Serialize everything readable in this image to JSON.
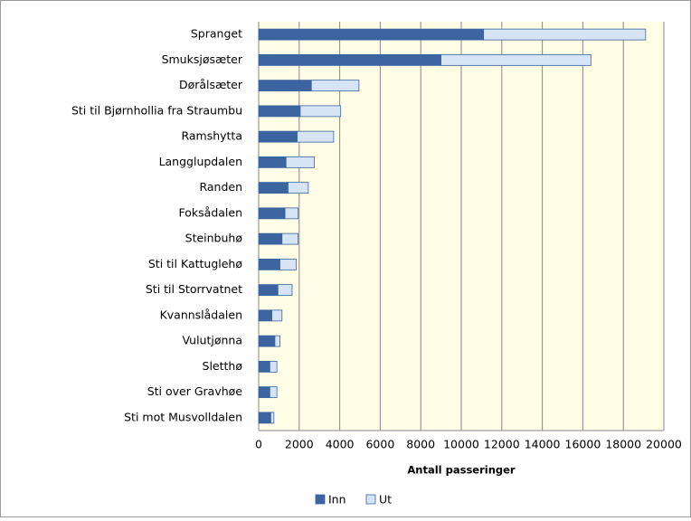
{
  "chart_data": {
    "type": "bar",
    "orientation": "horizontal",
    "stacked": true,
    "x_label": "Antall passeringer",
    "categories": [
      "Spranget",
      "Smuksjøsæter",
      "Dørålsæter",
      "Sti til Bjørnhollia fra Straumbu",
      "Ramshytta",
      "Langglupdalen",
      "Randen",
      "Foksådalen",
      "Steinbuhø",
      "Sti til Kattuglehø",
      "Sti til Storrvatnet",
      "Kvannslådalen",
      "Vulutjønna",
      "Sletthø",
      "Sti over Gravhøe",
      "Sti mot Musvolldalen"
    ],
    "series": [
      {
        "name": "Inn",
        "color": "#3b64a0",
        "values": [
          11100,
          9000,
          2600,
          2050,
          1900,
          1350,
          1450,
          1300,
          1150,
          1050,
          950,
          650,
          800,
          550,
          550,
          600
        ]
      },
      {
        "name": "Ut",
        "color": "#d7e4f5",
        "values": [
          8000,
          7400,
          2350,
          2000,
          1800,
          1400,
          1000,
          650,
          800,
          800,
          700,
          500,
          250,
          350,
          350,
          150
        ]
      }
    ],
    "xlim": [
      0,
      20000
    ],
    "xticks": [
      0,
      2000,
      4000,
      6000,
      8000,
      10000,
      12000,
      14000,
      16000,
      18000,
      20000
    ],
    "grid": true,
    "legend": "bottom"
  }
}
